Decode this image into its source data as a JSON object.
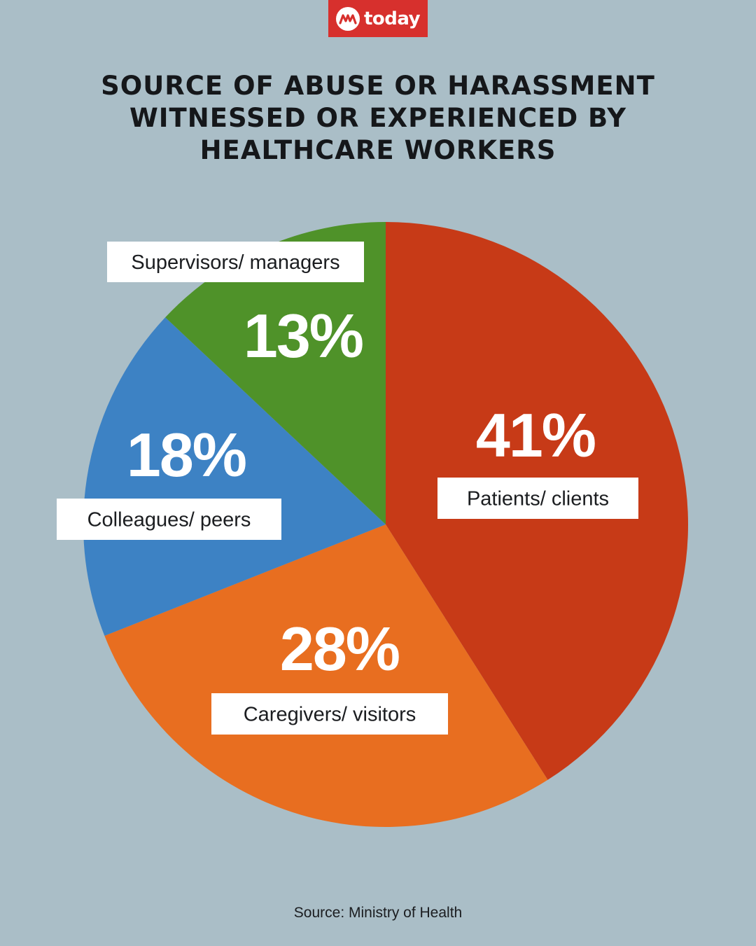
{
  "brand": {
    "logo_text": "today",
    "logo_color": "#d7302d"
  },
  "title_lines": [
    "SOURCE OF ABUSE OR HARASSMENT",
    "WITNESSED OR EXPERIENCED BY",
    "HEALTHCARE WORKERS"
  ],
  "source": "Source: Ministry of Health",
  "chart_data": {
    "type": "pie",
    "title": "SOURCE OF ABUSE OR HARASSMENT WITNESSED OR EXPERIENCED BY HEALTHCARE WORKERS",
    "start": "12 o'clock",
    "direction": "clockwise",
    "unit": "%",
    "slices": [
      {
        "label": "Patients/ clients",
        "value": 41,
        "value_label": "41%",
        "color": "#c73a17"
      },
      {
        "label": "Caregivers/ visitors",
        "value": 28,
        "value_label": "28%",
        "color": "#e86e20"
      },
      {
        "label": "Colleagues/ peers",
        "value": 18,
        "value_label": "18%",
        "color": "#3d82c4"
      },
      {
        "label": "Supervisors/ managers",
        "value": 13,
        "value_label": "13%",
        "color": "#4f9229"
      }
    ]
  }
}
